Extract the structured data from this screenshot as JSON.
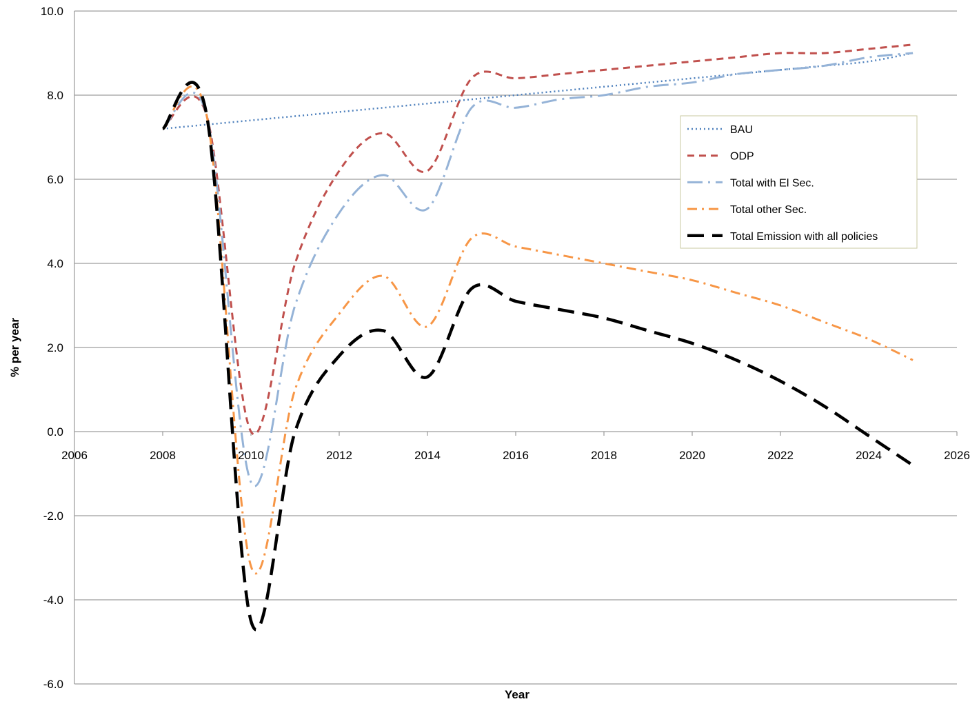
{
  "chart_data": {
    "type": "line",
    "title": "",
    "xlabel": "Year",
    "ylabel": "% per year",
    "xlim": [
      2006,
      2026
    ],
    "ylim": [
      -6,
      10
    ],
    "x_ticks": [
      "2006",
      "2008",
      "2010",
      "2012",
      "2014",
      "2016",
      "2018",
      "2020",
      "2022",
      "2024",
      "2026"
    ],
    "y_ticks": [
      "10.0",
      "8.0",
      "6.0",
      "4.0",
      "2.0",
      "0.0",
      "-2.0",
      "-4.0",
      "-6.0"
    ],
    "grid": "horizontal",
    "legend_position": "right",
    "x": [
      2008,
      2009,
      2010,
      2011,
      2012,
      2013,
      2014,
      2015,
      2016,
      2017,
      2018,
      2019,
      2020,
      2021,
      2022,
      2023,
      2024,
      2025
    ],
    "series": [
      {
        "name": "BAU",
        "color": "#4f81bd",
        "dash": "dotted",
        "values": [
          7.2,
          7.3,
          7.4,
          7.5,
          7.6,
          7.7,
          7.8,
          7.9,
          8.0,
          8.1,
          8.2,
          8.3,
          8.4,
          8.5,
          8.6,
          8.7,
          8.8,
          9.0
        ]
      },
      {
        "name": "ODP",
        "color": "#c0504d",
        "dash": "dashed",
        "values": [
          7.2,
          7.5,
          0.0,
          4.0,
          6.2,
          7.1,
          6.2,
          8.4,
          8.4,
          8.5,
          8.6,
          8.7,
          8.8,
          8.9,
          9.0,
          9.0,
          9.1,
          9.2
        ]
      },
      {
        "name": "Total with El Sec.",
        "color": "#95b3d7",
        "dash": "longdashdot",
        "values": [
          7.2,
          7.5,
          -1.2,
          3.0,
          5.2,
          6.1,
          5.3,
          7.7,
          7.7,
          7.9,
          8.0,
          8.2,
          8.3,
          8.5,
          8.6,
          8.7,
          8.9,
          9.0
        ]
      },
      {
        "name": "Total other Sec.",
        "color": "#f79646",
        "dash": "dashdot",
        "values": [
          7.2,
          7.5,
          -3.2,
          1.0,
          2.8,
          3.7,
          2.5,
          4.6,
          4.4,
          4.2,
          4.0,
          3.8,
          3.6,
          3.3,
          3.0,
          2.6,
          2.2,
          1.7
        ]
      },
      {
        "name": "Total Emission with all policies",
        "color": "#000000",
        "dash": "longdash",
        "values": [
          7.2,
          7.5,
          -4.5,
          0.0,
          1.8,
          2.4,
          1.3,
          3.4,
          3.1,
          2.9,
          2.7,
          2.4,
          2.1,
          1.7,
          1.2,
          0.6,
          -0.1,
          -0.8
        ]
      }
    ]
  }
}
